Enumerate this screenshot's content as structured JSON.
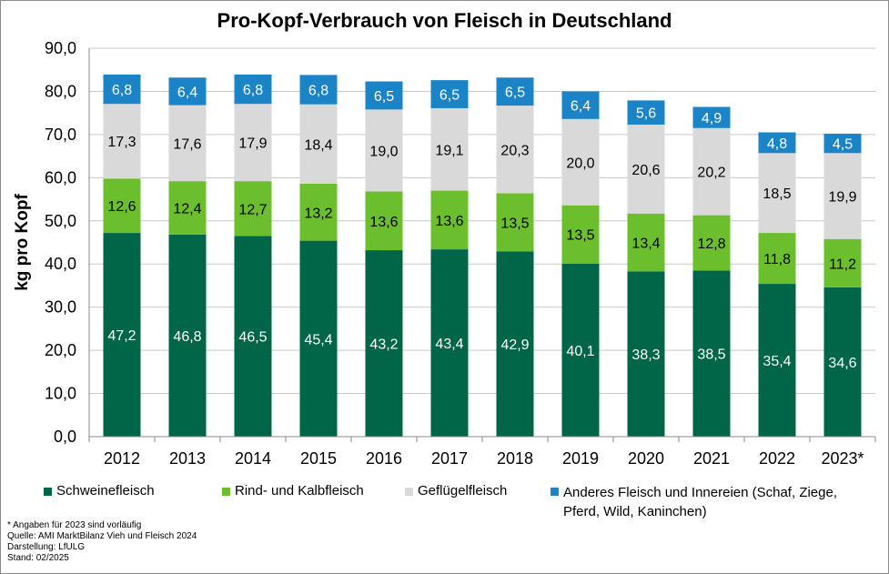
{
  "chart_data": {
    "type": "bar",
    "stacked": true,
    "title": "Pro-Kopf-Verbrauch von Fleisch in Deutschland",
    "ylabel": "kg pro Kopf",
    "xlabel": "",
    "ylim": [
      0,
      90
    ],
    "yticks": [
      "0,0",
      "10,0",
      "20,0",
      "30,0",
      "40,0",
      "50,0",
      "60,0",
      "70,0",
      "80,0",
      "90,0"
    ],
    "grid": true,
    "legend_position": "bottom",
    "categories": [
      "2012",
      "2013",
      "2014",
      "2015",
      "2016",
      "2017",
      "2018",
      "2019",
      "2020",
      "2021",
      "2022",
      "2023*"
    ],
    "series": [
      {
        "name": "Schweinefleisch",
        "color": "#006647",
        "label_color": "#ffffff",
        "values": [
          47.2,
          46.8,
          46.5,
          45.4,
          43.2,
          43.4,
          42.9,
          40.1,
          38.3,
          38.5,
          35.4,
          34.6
        ],
        "labels": [
          "47,2",
          "46,8",
          "46,5",
          "45,4",
          "43,2",
          "43,4",
          "42,9",
          "40,1",
          "38,3",
          "38,5",
          "35,4",
          "34,6"
        ]
      },
      {
        "name": "Rind- und Kalbfleisch",
        "color": "#6cbf2c",
        "label_color": "#000000",
        "values": [
          12.6,
          12.4,
          12.7,
          13.2,
          13.6,
          13.6,
          13.5,
          13.5,
          13.4,
          12.8,
          11.8,
          11.2
        ],
        "labels": [
          "12,6",
          "12,4",
          "12,7",
          "13,2",
          "13,6",
          "13,6",
          "13,5",
          "13,5",
          "13,4",
          "12,8",
          "11,8",
          "11,2"
        ]
      },
      {
        "name": "Geflügelfleisch",
        "color": "#d9d9d9",
        "label_color": "#000000",
        "values": [
          17.3,
          17.6,
          17.9,
          18.4,
          19.0,
          19.1,
          20.3,
          20.0,
          20.6,
          20.2,
          18.5,
          19.9
        ],
        "labels": [
          "17,3",
          "17,6",
          "17,9",
          "18,4",
          "19,0",
          "19,1",
          "20,3",
          "20,0",
          "20,6",
          "20,2",
          "18,5",
          "19,9"
        ]
      },
      {
        "name": "Anderes Fleisch und Innereien (Schaf, Ziege, Pferd, Wild, Kaninchen)",
        "color": "#1b84c6",
        "label_color": "#ffffff",
        "values": [
          6.8,
          6.4,
          6.8,
          6.8,
          6.5,
          6.5,
          6.5,
          6.4,
          5.6,
          4.9,
          4.8,
          4.5
        ],
        "labels": [
          "6,8",
          "6,4",
          "6,8",
          "6,8",
          "6,5",
          "6,5",
          "6,5",
          "6,4",
          "5,6",
          "4,9",
          "4,8",
          "4,5"
        ]
      }
    ]
  },
  "legend": {
    "items": [
      {
        "label": "Schweinefleisch",
        "color": "#006647"
      },
      {
        "label": "Rind- und Kalbfleisch",
        "color": "#6cbf2c"
      },
      {
        "label": "Geflügelfleisch",
        "color": "#d9d9d9"
      },
      {
        "label": "Anderes Fleisch und Innereien (Schaf, Ziege, Pferd, Wild, Kaninchen)",
        "color": "#1b84c6"
      }
    ]
  },
  "footnotes": {
    "note": "* Angaben für 2023 sind vorläufig",
    "source": "Quelle:  AMI MarktBilanz Vieh und Fleisch 2024",
    "author": "Darstellung: LfULG",
    "date": "Stand: 02/2025"
  }
}
